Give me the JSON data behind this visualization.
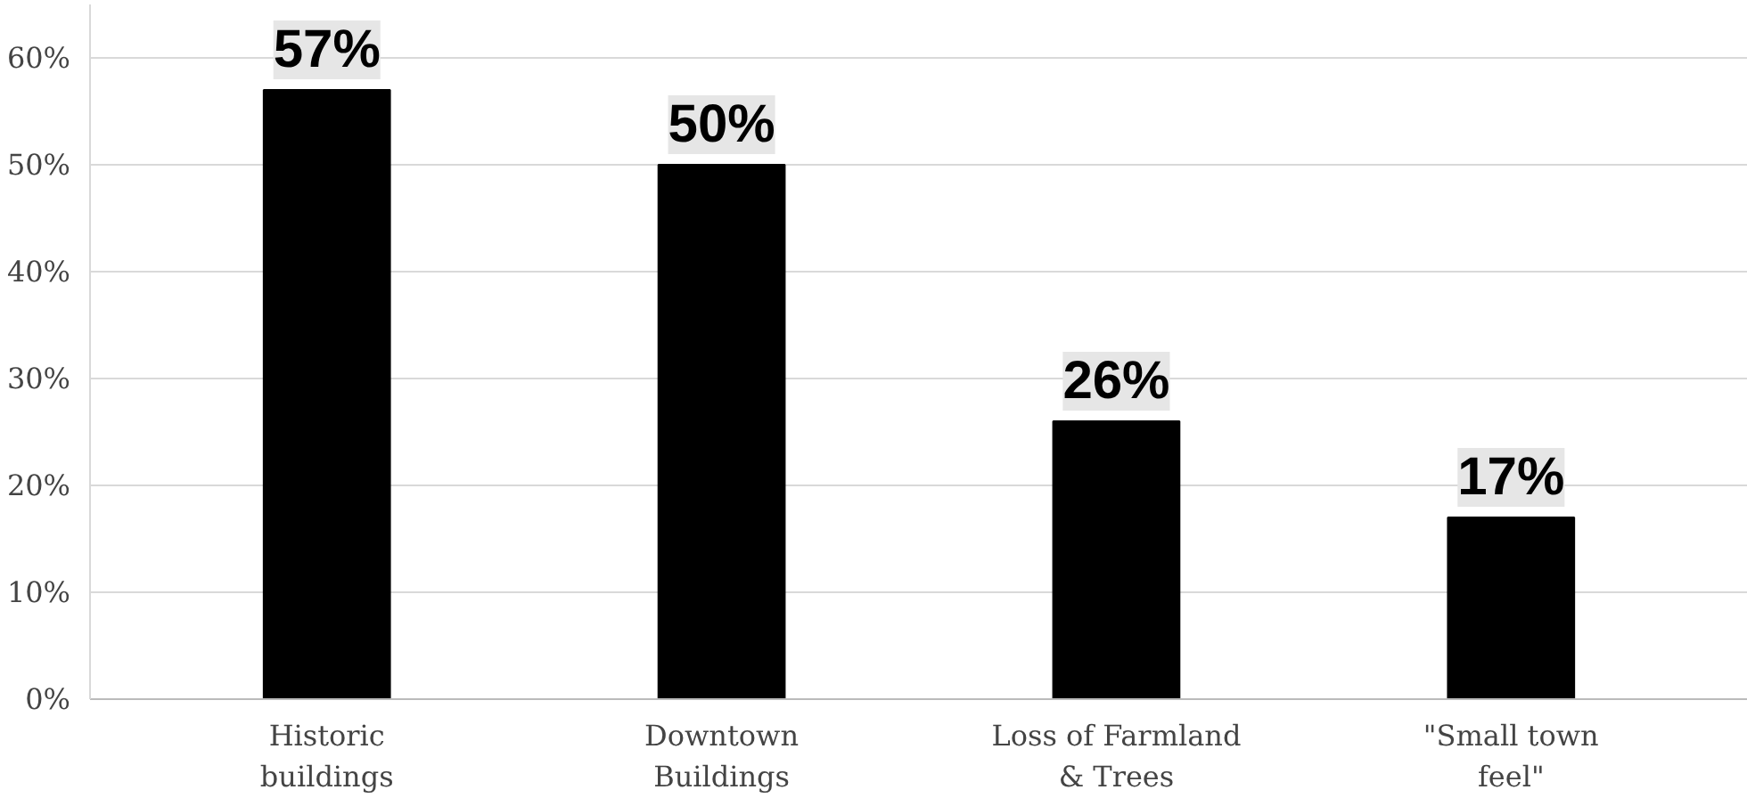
{
  "chart_data": {
    "type": "bar",
    "categories": [
      "Historic\nbuildings",
      "Downtown\nBuildings",
      "Loss of Farmland\n& Trees",
      "\"Small town\nfeel\""
    ],
    "values": [
      57,
      50,
      26,
      17
    ],
    "value_labels": [
      "57%",
      "50%",
      "26%",
      "17%"
    ],
    "color": "#000000",
    "ylim": [
      0,
      65
    ],
    "yticks": [
      {
        "value": 0,
        "label": "0%"
      },
      {
        "value": 10,
        "label": "10%"
      },
      {
        "value": 20,
        "label": "20%"
      },
      {
        "value": 30,
        "label": "30%"
      },
      {
        "value": 40,
        "label": "40%"
      },
      {
        "value": 50,
        "label": "50%"
      },
      {
        "value": 60,
        "label": "60%"
      }
    ],
    "grid": "y"
  }
}
